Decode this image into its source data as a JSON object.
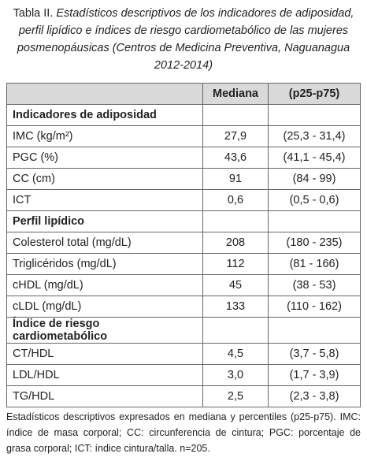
{
  "caption": {
    "label": "Tabla II.",
    "text": "Estadísticos descriptivos de los indicadores de adiposidad, perfil lipídico e índices de riesgo cardiometabólico de las mujeres posmenopáusicas (Centros de Medicina Preventiva, Naguanagua 2012-2014)"
  },
  "table": {
    "headers": [
      "Mediana",
      "(p25-p75)"
    ],
    "sections": [
      {
        "title": "Indicadores de adiposidad",
        "rows": [
          [
            "IMC (kg/m²)",
            "27,9",
            "(25,3 - 31,4)"
          ],
          [
            "PGC (%)",
            "43,6",
            "(41,1 - 45,4)"
          ],
          [
            "CC (cm)",
            "91",
            "(84 - 99)"
          ],
          [
            "ICT",
            "0,6",
            "(0,5 - 0,6)"
          ]
        ]
      },
      {
        "title": "Perfil lipídico",
        "rows": [
          [
            "Colesterol total (mg/dL)",
            "208",
            "(180 - 235)"
          ],
          [
            "Triglicéridos (mg/dL)",
            "112",
            "(81 - 166)"
          ],
          [
            "cHDL (mg/dL)",
            "45",
            "(38 - 53)"
          ],
          [
            "cLDL (mg/dL)",
            "133",
            "(110 - 162)"
          ]
        ]
      },
      {
        "title": "Índice de riesgo cardiometabólico",
        "rows": [
          [
            "CT/HDL",
            "4,5",
            "(3,7 - 5,8)"
          ],
          [
            "LDL/HDL",
            "3,0",
            "(1,7 - 3,9)"
          ],
          [
            "TG/HDL",
            "2,5",
            "(2,3 - 3,8)"
          ]
        ]
      }
    ]
  },
  "footnote": "Estadísticos descriptivos expresados en mediana y percentiles (p25-p75). IMC: índice de masa corporal; CC: circunferencia de cintura; PGC: porcentaje de grasa corporal; ICT: índice cintura/talla. n=205."
}
